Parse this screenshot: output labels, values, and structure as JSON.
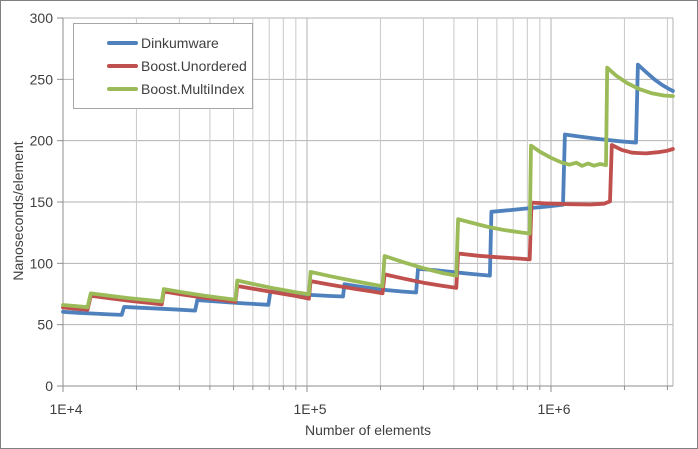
{
  "chart_data": {
    "type": "line",
    "title": "",
    "xlabel": "Number of elements",
    "ylabel": "Nanoseconds/element",
    "x_scale": "log",
    "x_range": [
      10000,
      3162278
    ],
    "ylim": [
      0,
      300
    ],
    "grid": true,
    "legend_position": "top-left-inside",
    "y_ticks": [
      0,
      50,
      100,
      150,
      200,
      250,
      300
    ],
    "x_major_ticks": [
      {
        "value": 10000,
        "label": "1E+4"
      },
      {
        "value": 100000,
        "label": "1E+5"
      },
      {
        "value": 1000000,
        "label": "1E+6"
      }
    ],
    "x_minor_ticks": [
      20000,
      30000,
      40000,
      50000,
      60000,
      70000,
      80000,
      90000,
      200000,
      300000,
      400000,
      500000,
      600000,
      700000,
      800000,
      900000,
      2000000,
      3000000
    ],
    "series": [
      {
        "name": "Dinkumware",
        "color": "#4F81BD",
        "points": [
          [
            10000,
            60.5
          ],
          [
            11500,
            59.7
          ],
          [
            13500,
            59
          ],
          [
            15500,
            58.4
          ],
          [
            17400,
            58
          ],
          [
            17800,
            64.5
          ],
          [
            20500,
            63.8
          ],
          [
            25000,
            63
          ],
          [
            30000,
            62.2
          ],
          [
            34800,
            61.5
          ],
          [
            35500,
            70
          ],
          [
            42000,
            69
          ],
          [
            52000,
            67.7
          ],
          [
            62000,
            66.8
          ],
          [
            69500,
            66.2
          ],
          [
            70800,
            77
          ],
          [
            85000,
            75.6
          ],
          [
            105000,
            74.2
          ],
          [
            125000,
            73.4
          ],
          [
            140500,
            73
          ],
          [
            142500,
            83
          ],
          [
            165000,
            81
          ],
          [
            200000,
            78.7
          ],
          [
            245000,
            77
          ],
          [
            280000,
            76.2
          ],
          [
            285000,
            95.5
          ],
          [
            330000,
            94.6
          ],
          [
            400000,
            92.8
          ],
          [
            480000,
            91.2
          ],
          [
            562000,
            90
          ],
          [
            570000,
            142
          ],
          [
            680000,
            143.4
          ],
          [
            820000,
            145
          ],
          [
            980000,
            146.5
          ],
          [
            1120000,
            147.8
          ],
          [
            1140000,
            205
          ],
          [
            1350000,
            203
          ],
          [
            1600000,
            201.2
          ],
          [
            1900000,
            199.6
          ],
          [
            2230000,
            198.4
          ],
          [
            2270000,
            262
          ],
          [
            2450000,
            256
          ],
          [
            2650000,
            250
          ],
          [
            2850000,
            245.5
          ],
          [
            3050000,
            242
          ],
          [
            3160000,
            240.5
          ]
        ]
      },
      {
        "name": "Boost.Unordered",
        "color": "#C0504D",
        "points": [
          [
            10000,
            64
          ],
          [
            11200,
            63
          ],
          [
            12600,
            62.2
          ],
          [
            13000,
            73.5
          ],
          [
            15500,
            71.5
          ],
          [
            19000,
            69.3
          ],
          [
            23000,
            67.6
          ],
          [
            25400,
            66.6
          ],
          [
            25900,
            77
          ],
          [
            31000,
            74.5
          ],
          [
            38000,
            72
          ],
          [
            46000,
            69.8
          ],
          [
            50900,
            68.6
          ],
          [
            51800,
            81.5
          ],
          [
            62000,
            78.8
          ],
          [
            75000,
            76
          ],
          [
            90000,
            73.4
          ],
          [
            101800,
            71.2
          ],
          [
            103500,
            85.5
          ],
          [
            125000,
            82.5
          ],
          [
            155000,
            79.4
          ],
          [
            185000,
            77
          ],
          [
            204000,
            75.6
          ],
          [
            208000,
            91
          ],
          [
            250000,
            87.5
          ],
          [
            300000,
            84.2
          ],
          [
            360000,
            81.6
          ],
          [
            409000,
            80
          ],
          [
            416000,
            108
          ],
          [
            500000,
            106.2
          ],
          [
            600000,
            105
          ],
          [
            720000,
            104
          ],
          [
            818000,
            103.2
          ],
          [
            832000,
            149.5
          ],
          [
            1000000,
            148.7
          ],
          [
            1200000,
            148.2
          ],
          [
            1450000,
            148
          ],
          [
            1650000,
            148.6
          ],
          [
            1745000,
            150.5
          ],
          [
            1775000,
            196.5
          ],
          [
            1950000,
            192.5
          ],
          [
            2150000,
            190.2
          ],
          [
            2450000,
            189.6
          ],
          [
            2750000,
            190.6
          ],
          [
            3000000,
            191.8
          ],
          [
            3160000,
            193.2
          ]
        ]
      },
      {
        "name": "Boost.MultiIndex",
        "color": "#9BBB59",
        "points": [
          [
            10000,
            66
          ],
          [
            11200,
            65.2
          ],
          [
            12600,
            64.2
          ],
          [
            13000,
            75.5
          ],
          [
            15500,
            73.5
          ],
          [
            19000,
            71.4
          ],
          [
            23000,
            69.8
          ],
          [
            25400,
            69
          ],
          [
            25900,
            79
          ],
          [
            31000,
            76.3
          ],
          [
            38000,
            73.6
          ],
          [
            46000,
            71.4
          ],
          [
            50900,
            70.3
          ],
          [
            51800,
            86
          ],
          [
            62000,
            82.6
          ],
          [
            75000,
            79.2
          ],
          [
            90000,
            76.5
          ],
          [
            101800,
            74.8
          ],
          [
            103500,
            93
          ],
          [
            125000,
            89.4
          ],
          [
            155000,
            85.7
          ],
          [
            185000,
            82.8
          ],
          [
            204000,
            81.3
          ],
          [
            208000,
            106
          ],
          [
            250000,
            100.8
          ],
          [
            300000,
            96
          ],
          [
            360000,
            92
          ],
          [
            409000,
            90
          ],
          [
            416000,
            136
          ],
          [
            480000,
            132.8
          ],
          [
            560000,
            129.4
          ],
          [
            650000,
            127
          ],
          [
            750000,
            125.2
          ],
          [
            818000,
            124.3
          ],
          [
            828000,
            196
          ],
          [
            900000,
            191
          ],
          [
            1000000,
            186
          ],
          [
            1100000,
            182.4
          ],
          [
            1190000,
            180.4
          ],
          [
            1270000,
            182
          ],
          [
            1340000,
            179.4
          ],
          [
            1420000,
            181.4
          ],
          [
            1500000,
            179.6
          ],
          [
            1590000,
            181
          ],
          [
            1680000,
            180
          ],
          [
            1700000,
            259.5
          ],
          [
            1850000,
            253
          ],
          [
            2050000,
            247
          ],
          [
            2300000,
            242
          ],
          [
            2600000,
            238.5
          ],
          [
            2900000,
            236.8
          ],
          [
            3160000,
            236.3
          ]
        ]
      }
    ],
    "colors": {
      "grid_minor": "#C9C9C9",
      "grid_major": "#B3B3B3",
      "axis": "#8E8E8E",
      "text": "#3F3F3F",
      "frame_border": "#808080",
      "legend_border": "#A6A6A6",
      "background": "#FFFFFF"
    }
  }
}
